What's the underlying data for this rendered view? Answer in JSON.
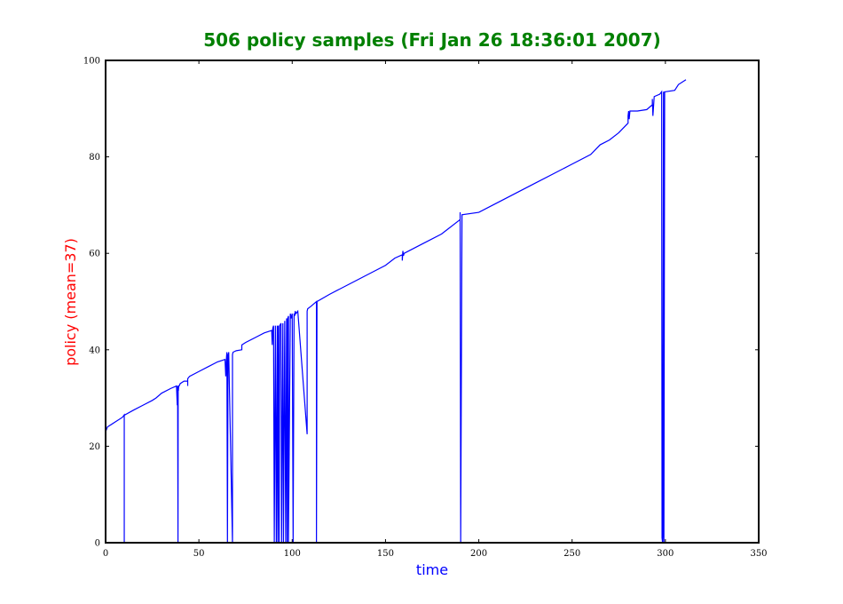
{
  "chart_data": {
    "type": "line",
    "title": "506 policy samples (Fri Jan 26 18:36:01 2007)",
    "xlabel": "time",
    "ylabel": "policy (mean=37)",
    "xlim": [
      0,
      350
    ],
    "ylim": [
      0,
      100
    ],
    "xticks": [
      0,
      50,
      100,
      150,
      200,
      250,
      300,
      350
    ],
    "xtick_labels": [
      "0",
      "50",
      "100",
      "150",
      "200",
      "250",
      "300",
      "350"
    ],
    "yticks": [
      0,
      20,
      40,
      60,
      80,
      100
    ],
    "ytick_labels": [
      "0",
      "20",
      "40",
      "60",
      "80",
      "100"
    ],
    "grid": false,
    "legend": "none",
    "colors": {
      "line": "#0000ff",
      "title": "#008000",
      "xlabel": "#0000ff",
      "ylabel": "#ff0000",
      "axes": "#000000"
    },
    "series": [
      {
        "color": "#0000ff",
        "x": [
          0,
          1,
          5,
          9,
          10,
          10,
          10,
          10.3,
          15,
          20,
          25,
          27,
          30,
          35,
          38,
          38.4,
          38.6,
          38.8,
          38.9,
          39,
          39.2,
          39.4,
          40,
          42,
          44,
          44,
          44,
          45,
          50,
          55,
          60,
          64,
          64.4,
          64.8,
          65,
          65.3,
          65.6,
          66,
          66,
          68,
          68,
          68.3,
          70,
          73,
          73,
          75,
          80,
          85,
          89,
          89.3,
          89.6,
          90,
          90.4,
          91,
          91.5,
          92,
          92.3,
          92.6,
          93,
          93.3,
          94,
          94.3,
          95,
          95.3,
          96,
          96.5,
          97,
          97.3,
          97.6,
          98,
          98,
          99,
          99.4,
          100,
          100.5,
          101,
          101.3,
          101.6,
          102,
          103,
          108,
          108,
          108.3,
          110,
          113,
          113,
          113.3,
          120,
          130,
          140,
          150,
          155,
          159,
          159,
          159.3,
          159.6,
          160,
          170,
          180,
          190,
          190,
          190.3,
          191,
          200,
          210,
          220,
          230,
          240,
          250,
          260,
          265,
          270,
          275,
          280,
          280,
          280.3,
          280.6,
          281,
          285,
          290,
          293,
          293,
          293.3,
          294,
          297,
          298,
          298,
          298.2,
          298.5,
          299,
          299,
          299.2,
          299.6,
          300,
          305,
          307,
          311
        ],
        "y": [
          23,
          24,
          25,
          26,
          26.5,
          0,
          26.5,
          26.5,
          27.5,
          28.5,
          29.5,
          30,
          31,
          32,
          32.5,
          28.5,
          32.5,
          0,
          32.5,
          31.5,
          32.5,
          32.5,
          33,
          33.5,
          33.5,
          32.5,
          34,
          34.5,
          35.5,
          36.5,
          37.5,
          38,
          34.5,
          38.5,
          39.5,
          0,
          39,
          39.5,
          39,
          0,
          39,
          39.5,
          39.8,
          40,
          41,
          41.5,
          42.5,
          43.5,
          44,
          41,
          44.5,
          45,
          0,
          45,
          0,
          45,
          0,
          45,
          0,
          45,
          45.5,
          0,
          45.5,
          0,
          46,
          0,
          46.5,
          0,
          46.5,
          47,
          0,
          47.5,
          46.5,
          47.5,
          0,
          47.5,
          47,
          48,
          47.5,
          48,
          22.5,
          48,
          48.5,
          49,
          50,
          0,
          50,
          51.5,
          53.5,
          55.5,
          57.5,
          59,
          59.7,
          58.5,
          60.5,
          59.5,
          60,
          62,
          64,
          67,
          68.5,
          0,
          68,
          68.5,
          70.5,
          72.5,
          74.5,
          76.5,
          78.5,
          80.5,
          82.5,
          83.5,
          85,
          87,
          88.5,
          89.5,
          87.8,
          89.5,
          89.5,
          89.8,
          90.8,
          92,
          88.5,
          92.5,
          93,
          93.5,
          93.5,
          1,
          0,
          93.5,
          2,
          0,
          93.5,
          93.5,
          93.8,
          95,
          96
        ]
      }
    ]
  }
}
